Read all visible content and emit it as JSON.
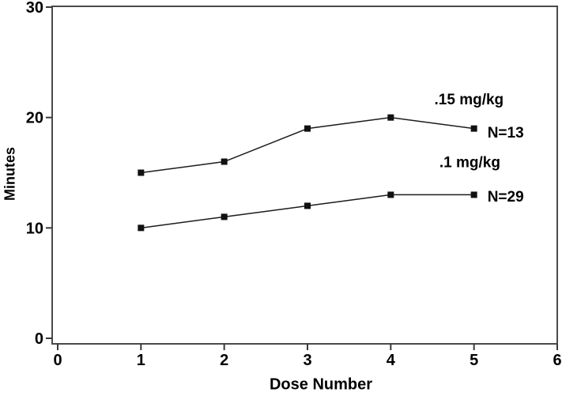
{
  "chart_data": {
    "type": "line",
    "title": "",
    "xlabel": "Dose Number",
    "ylabel": "Minutes",
    "xlim": [
      0,
      6
    ],
    "ylim": [
      0,
      30
    ],
    "xticks": [
      0,
      1,
      2,
      3,
      4,
      5,
      6
    ],
    "yticks": [
      0,
      10,
      20,
      30
    ],
    "grid": false,
    "legend_position": "inline-annotations",
    "marker": "square",
    "x": [
      1,
      2,
      3,
      4,
      5
    ],
    "series": [
      {
        "name": ".15 mg/kg",
        "n_label": "N=13",
        "values": [
          15,
          16,
          19,
          20,
          19
        ]
      },
      {
        "name": ".1 mg/kg",
        "n_label": "N=29",
        "values": [
          10,
          11,
          12,
          13,
          13
        ]
      }
    ],
    "annotations": [
      {
        "text": ".15 mg/kg",
        "x": 4.94,
        "y": 21.7
      },
      {
        "text": "N=13",
        "x": 5.38,
        "y": 18.7
      },
      {
        "text": ".1 mg/kg",
        "x": 4.95,
        "y": 16.0
      },
      {
        "text": "N=29",
        "x": 5.38,
        "y": 12.9
      }
    ],
    "colors": {
      "line": "#1c1c1c",
      "marker": "#111111",
      "frame": "#4a4a4a",
      "tick": "#3a3a3a",
      "text": "#000000",
      "background": "#ffffff"
    }
  }
}
